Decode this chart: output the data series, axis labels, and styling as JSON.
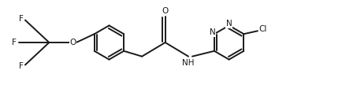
{
  "background_color": "#ffffff",
  "line_color": "#1a1a1a",
  "line_width": 1.4,
  "font_size": 7.5,
  "xlim": [
    0,
    8.5
  ],
  "ylim": [
    0,
    2.2
  ],
  "figsize": [
    4.34,
    1.08
  ],
  "dpi": 100
}
